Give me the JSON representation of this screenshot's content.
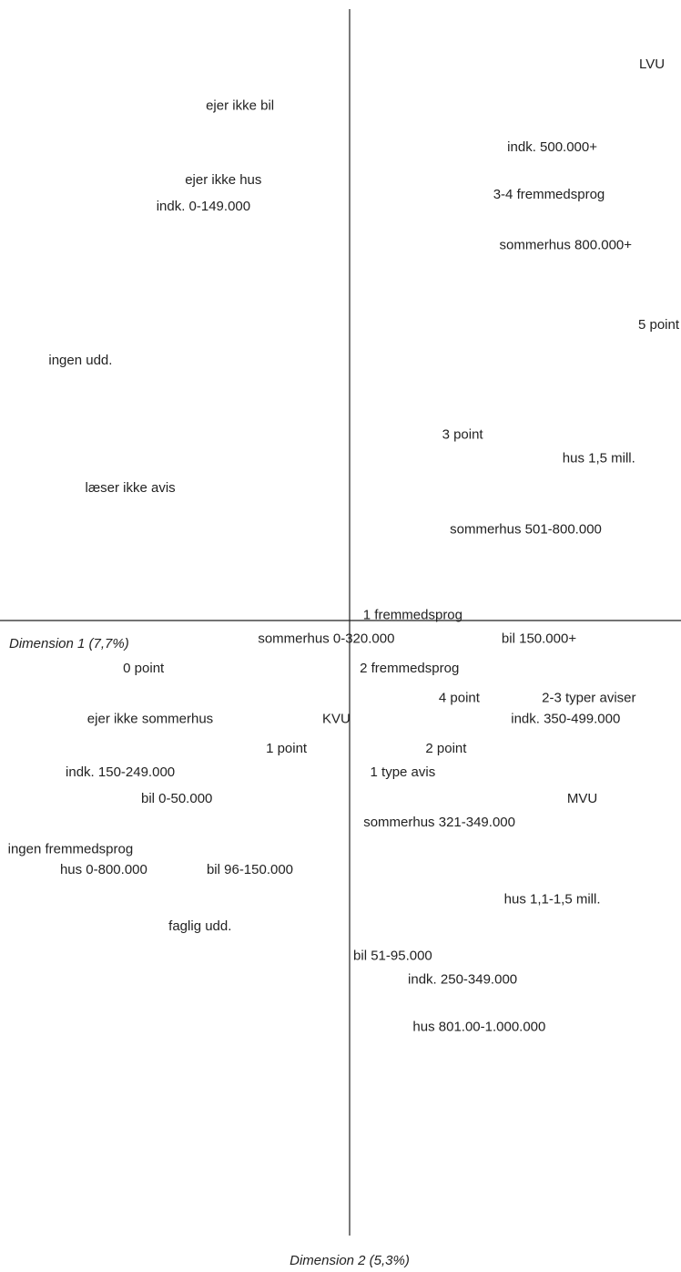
{
  "chart_data": {
    "type": "scatter",
    "title": "",
    "xlabel": "Dimension 1 (7,7%)",
    "ylabel": "Dimension 2 (5,3%)",
    "xlim": [
      -10,
      10
    ],
    "ylim": [
      -20,
      20
    ],
    "grid": false,
    "points": [
      {
        "label": "LVU",
        "x": 9.1,
        "y": 18.8
      },
      {
        "label": "ejer ikke bil",
        "x": -3.3,
        "y": 17.4
      },
      {
        "label": "indk. 500.000+",
        "x": 6.1,
        "y": 16.0
      },
      {
        "label": "ejer ikke hus",
        "x": -3.8,
        "y": 14.9
      },
      {
        "label": "3-4 fremmedsprog",
        "x": 6.0,
        "y": 14.4
      },
      {
        "label": "indk. 0-149.000",
        "x": -4.4,
        "y": 14.0
      },
      {
        "label": "sommerhus 800.000+",
        "x": 6.5,
        "y": 12.7
      },
      {
        "label": "5 point",
        "x": 9.3,
        "y": 10.0
      },
      {
        "label": "ingen udd.",
        "x": -8.1,
        "y": 8.8
      },
      {
        "label": "3 point",
        "x": 3.4,
        "y": 6.3
      },
      {
        "label": "hus 1,5 mill.",
        "x": 7.5,
        "y": 5.5
      },
      {
        "label": "læser ikke avis",
        "x": -6.6,
        "y": 4.5
      },
      {
        "label": "sommerhus 501-800.000",
        "x": 5.3,
        "y": 3.1
      },
      {
        "label": "1 fremmedsprog",
        "x": 1.9,
        "y": 0.2
      },
      {
        "label": "sommerhus 0-320.000",
        "x": -0.7,
        "y": -0.6
      },
      {
        "label": "bil 150.000+",
        "x": 5.7,
        "y": -0.6
      },
      {
        "label": "0 point",
        "x": -6.2,
        "y": -1.6
      },
      {
        "label": "2 fremmedsprog",
        "x": 1.8,
        "y": -1.6
      },
      {
        "label": "4 point",
        "x": 3.3,
        "y": -2.6
      },
      {
        "label": "2-3 typer aviser",
        "x": 7.2,
        "y": -2.6
      },
      {
        "label": "ejer ikke sommerhus",
        "x": -6.0,
        "y": -3.3
      },
      {
        "label": "KVU",
        "x": -0.4,
        "y": -3.3
      },
      {
        "label": "indk. 350-499.000",
        "x": 6.5,
        "y": -3.3
      },
      {
        "label": "1 point",
        "x": -1.9,
        "y": -4.3
      },
      {
        "label": "2 point",
        "x": 2.9,
        "y": -4.3
      },
      {
        "label": "indk. 150-249.000",
        "x": -6.9,
        "y": -5.1
      },
      {
        "label": "1 type avis",
        "x": 1.6,
        "y": -5.1
      },
      {
        "label": "bil 0-50.000",
        "x": -5.2,
        "y": -6.0
      },
      {
        "label": "MVU",
        "x": 7.0,
        "y": -6.0
      },
      {
        "label": "sommerhus 321-349.000",
        "x": 2.7,
        "y": -6.8
      },
      {
        "label": "ingen fremmedsprog",
        "x": -8.4,
        "y": -7.7
      },
      {
        "label": "hus 0-800.000",
        "x": -7.4,
        "y": -8.4
      },
      {
        "label": "bil 96-150.000",
        "x": -3.0,
        "y": -8.4
      },
      {
        "label": "hus 1,1-1,5 mill.",
        "x": 6.1,
        "y": -9.4
      },
      {
        "label": "faglig udd.",
        "x": -4.5,
        "y": -10.3
      },
      {
        "label": "bil 51-95.000",
        "x": 1.3,
        "y": -11.3
      },
      {
        "label": "indk. 250-349.000",
        "x": 3.4,
        "y": -12.1
      },
      {
        "label": "hus 801.00-1.000.000",
        "x": 3.9,
        "y": -13.7
      }
    ]
  }
}
